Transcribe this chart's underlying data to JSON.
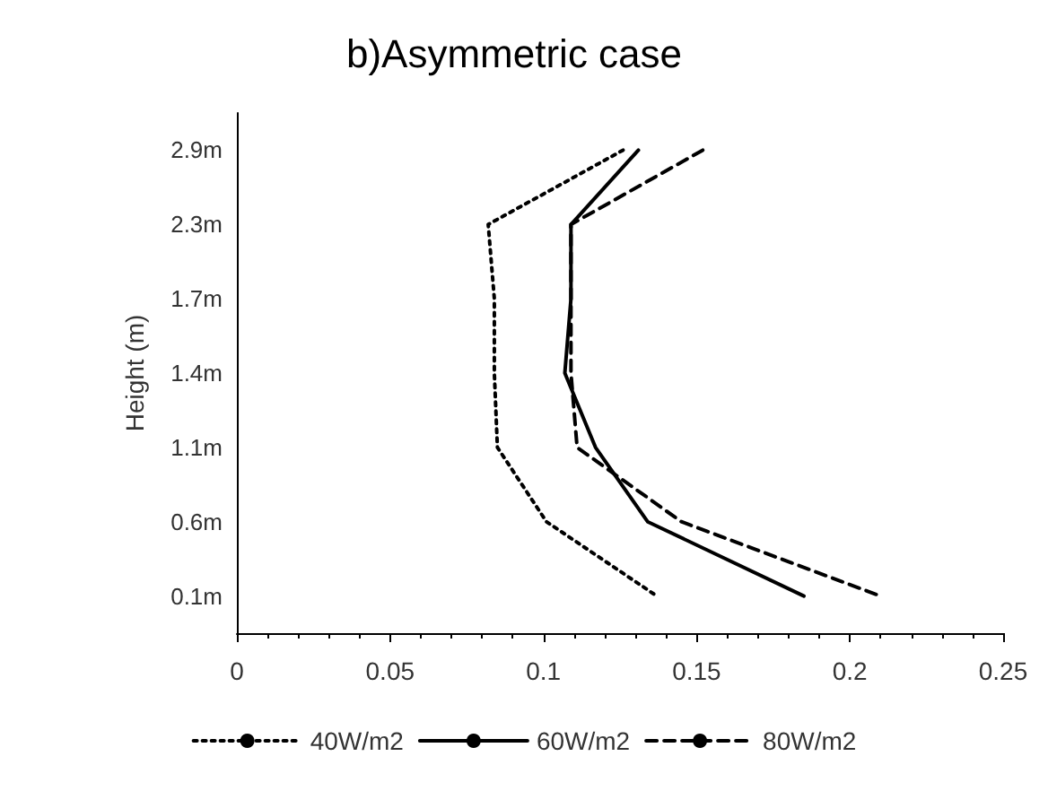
{
  "chart_data": {
    "type": "line",
    "orientation": "horizontal",
    "title": "b)Asymmetric case",
    "ylabel": "Height (m)",
    "categories": [
      "2.9m",
      "2.3m",
      "1.7m",
      "1.4m",
      "1.1m",
      "0.6m",
      "0.1m"
    ],
    "series": [
      {
        "name": "40W/m2",
        "color": "#000000",
        "line_style": "dotted",
        "values": [
          0.126,
          0.082,
          0.084,
          0.084,
          0.085,
          0.101,
          0.137
        ]
      },
      {
        "name": "60W/m2",
        "color": "#000000",
        "line_style": "solid",
        "values": [
          0.131,
          0.109,
          0.109,
          0.107,
          0.117,
          0.134,
          0.185
        ]
      },
      {
        "name": "80W/m2",
        "color": "#000000",
        "line_style": "dashed",
        "values": [
          0.152,
          0.109,
          0.109,
          0.109,
          0.111,
          0.145,
          0.21
        ]
      }
    ],
    "xlim": [
      0,
      0.25
    ],
    "xticks": [
      0,
      0.05,
      0.1,
      0.15,
      0.2,
      0.25
    ],
    "grid": false,
    "legend": "bottom",
    "marker": "none"
  }
}
